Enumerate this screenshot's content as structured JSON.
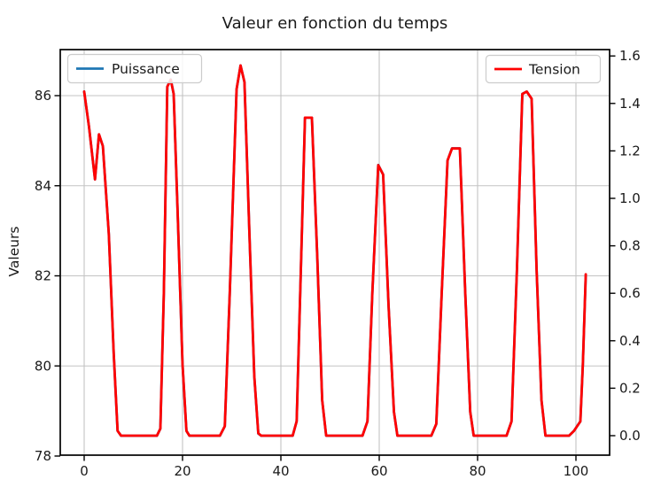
{
  "title": "Valeur en fonction du temps",
  "axes": {
    "x": {
      "ticks": [
        "0",
        "20",
        "40",
        "60",
        "80",
        "100"
      ],
      "tick_values": [
        0,
        20,
        40,
        60,
        80,
        100
      ]
    },
    "y_left": {
      "label": "Valeurs",
      "ticks": [
        "78",
        "80",
        "82",
        "84",
        "86"
      ],
      "tick_values": [
        78,
        80,
        82,
        84,
        86
      ]
    },
    "y_right": {
      "ticks": [
        "0.0",
        "0.2",
        "0.4",
        "0.6",
        "0.8",
        "1.0",
        "1.2",
        "1.4",
        "1.6"
      ],
      "tick_values": [
        0.0,
        0.2,
        0.4,
        0.6,
        0.8,
        1.0,
        1.2,
        1.4,
        1.6
      ]
    }
  },
  "legend_left": {
    "label": "Puissance",
    "color": "#1f77b4"
  },
  "legend_right": {
    "label": "Tension",
    "color": "#ff0000"
  },
  "colors": {
    "grid": "#c3c3c3",
    "spine": "#000000",
    "tension_line": "#ff0000",
    "puissance_line": "#1f77b4",
    "legend_border": "#cccccc",
    "legend_fill": "rgba(255,255,255,0.85)"
  },
  "chart_data": {
    "type": "line",
    "title": "Valeur en fonction du temps",
    "xlabel": "",
    "ylabel_left": "Valeurs",
    "ylabel_right": "",
    "x_data_range": [
      0,
      102
    ],
    "xlim": [
      -6,
      107
    ],
    "ylim_left": [
      78,
      87
    ],
    "ylim_right": [
      -0.086,
      1.66
    ],
    "grid": true,
    "legend_positions": [
      "upper left",
      "upper right"
    ],
    "x": [
      0,
      1,
      2.2,
      3,
      3.8,
      5,
      6,
      6.8,
      7.5,
      14.8,
      15.5,
      16.2,
      16.9,
      17.6,
      18.2,
      19,
      20,
      20.8,
      21.4,
      27.6,
      28.6,
      29.6,
      31,
      31.8,
      32.6,
      33.6,
      34.6,
      35.4,
      36,
      42.4,
      43.2,
      44.2,
      44.9,
      46.3,
      47.4,
      48.4,
      49.2,
      56.6,
      57.6,
      58.6,
      59.8,
      60.8,
      61.9,
      63,
      63.7,
      70.6,
      71.6,
      72.7,
      73.9,
      74.8,
      76.4,
      77.5,
      78.5,
      79.2,
      85.9,
      86.9,
      88,
      89.1,
      90,
      91,
      92,
      93,
      93.8,
      98.6,
      99.6,
      100.9,
      101.4,
      102
    ],
    "series": [
      {
        "name": "Puissance",
        "color": "#1f77b4",
        "axis": "left",
        "note": "coincides pixel-for-pixel with Tension curve, hidden beneath it",
        "values": [
          86.09,
          85.3,
          84.14,
          85.14,
          84.88,
          82.93,
          80.29,
          78.56,
          78.45,
          78.45,
          78.61,
          81.61,
          86.2,
          86.36,
          86.04,
          83.46,
          80.03,
          78.56,
          78.45,
          78.45,
          78.66,
          81.61,
          86.14,
          86.67,
          86.3,
          82.93,
          79.77,
          78.5,
          78.45,
          78.45,
          78.77,
          82.67,
          85.51,
          85.51,
          82.4,
          79.24,
          78.45,
          78.45,
          78.77,
          81.61,
          84.46,
          84.25,
          81.35,
          78.98,
          78.45,
          78.45,
          78.71,
          81.61,
          84.56,
          84.83,
          84.83,
          81.61,
          78.98,
          78.45,
          78.45,
          78.77,
          82.14,
          86.04,
          86.09,
          85.93,
          82.14,
          79.24,
          78.45,
          78.45,
          78.56,
          78.77,
          80.03,
          82.03
        ]
      },
      {
        "name": "Tension",
        "color": "#ff0000",
        "axis": "right",
        "values": [
          1.45,
          1.3,
          1.08,
          1.27,
          1.22,
          0.85,
          0.35,
          0.02,
          0,
          0,
          0.03,
          0.6,
          1.47,
          1.5,
          1.44,
          0.95,
          0.3,
          0.02,
          0,
          0,
          0.04,
          0.6,
          1.46,
          1.56,
          1.49,
          0.85,
          0.25,
          0.01,
          0,
          0,
          0.06,
          0.8,
          1.34,
          1.34,
          0.75,
          0.15,
          0,
          0,
          0.06,
          0.6,
          1.14,
          1.1,
          0.55,
          0.1,
          0,
          0,
          0.05,
          0.6,
          1.16,
          1.21,
          1.21,
          0.6,
          0.1,
          0,
          0,
          0.06,
          0.7,
          1.44,
          1.45,
          1.42,
          0.7,
          0.15,
          0,
          0,
          0.02,
          0.06,
          0.3,
          0.68
        ]
      }
    ]
  }
}
